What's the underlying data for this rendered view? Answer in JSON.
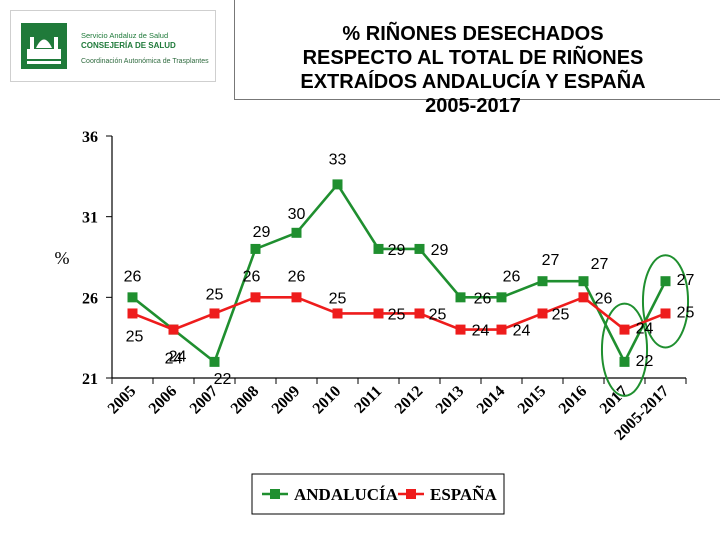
{
  "logo": {
    "icon": "junta-andalucia-emblem-icon",
    "line1": "Servicio Andaluz de Salud",
    "line2": "CONSEJERÍA DE SALUD",
    "line3": "Coordinación Autonómica de Trasplantes",
    "color": "#1f7a3a"
  },
  "chart_data": {
    "type": "line",
    "title_lines": [
      "% RIÑONES DESECHADOS",
      "RESPECTO AL TOTAL DE  RIÑONES",
      "EXTRAÍDOS ANDALUCÍA Y ESPAÑA",
      "2005-2017"
    ],
    "ylabel": "%",
    "xlabel": "",
    "categories": [
      "2005",
      "2006",
      "2007",
      "2008",
      "2009",
      "2010",
      "2011",
      "2012",
      "2013",
      "2014",
      "2015",
      "2016",
      "2017",
      "2005-2017"
    ],
    "y_ticks": [
      21,
      26,
      31,
      36
    ],
    "ylim": [
      21,
      36
    ],
    "grid": false,
    "legend_position": "bottom",
    "series": [
      {
        "name": "ANDALUCÍA",
        "color": "#1f8f2f",
        "values": [
          26,
          24,
          22,
          29,
          30,
          33,
          29,
          29,
          26,
          26,
          27,
          27,
          22,
          27
        ],
        "labels": [
          "26",
          "24",
          "22",
          "29",
          "30",
          "33",
          "29",
          "29",
          "26",
          "26",
          "27",
          "27",
          "22",
          "27"
        ]
      },
      {
        "name": "ESPAÑA",
        "color": "#ee1c1c",
        "values": [
          25,
          24,
          25,
          26,
          26,
          25,
          25,
          25,
          24,
          24,
          25,
          26,
          24,
          25
        ],
        "labels": [
          "25",
          "24",
          "25",
          "26",
          "26",
          "25",
          "25",
          "25",
          "24",
          "24",
          "25",
          "26",
          "24",
          "25"
        ]
      }
    ],
    "highlight_categories": [
      "2017",
      "2005-2017"
    ],
    "highlight_color": "#1f8f2f"
  }
}
